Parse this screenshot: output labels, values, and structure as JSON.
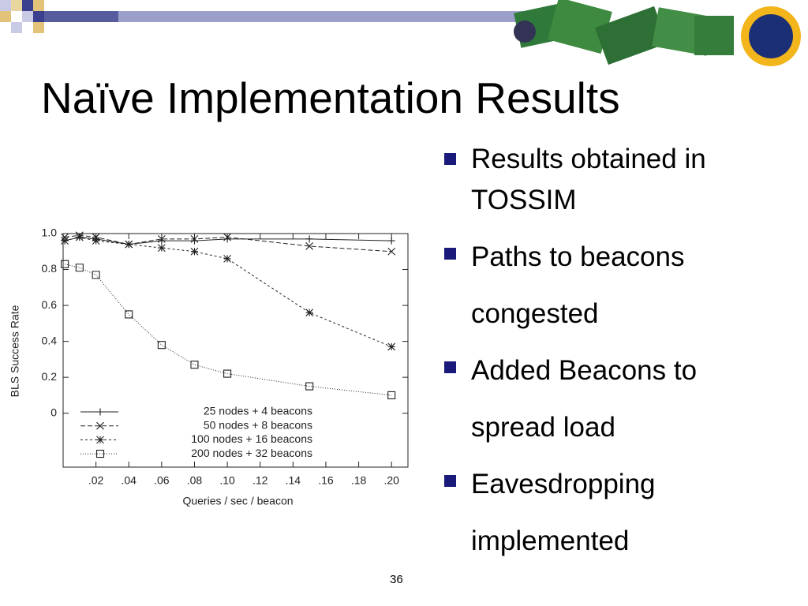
{
  "slide": {
    "title": "Naïve Implementation Results",
    "bullets": [
      "Results obtained in TOSSIM",
      "Paths to beacons congested",
      "Added Beacons to spread load",
      "Eavesdropping implemented"
    ],
    "page_number": "36"
  },
  "chart_data": {
    "type": "line",
    "x_label": "Queries / sec / beacon",
    "y_label": "BLS Success Rate",
    "x": [
      0.001,
      0.01,
      0.02,
      0.04,
      0.06,
      0.08,
      0.1,
      0.15,
      0.2
    ],
    "series": [
      {
        "name": "25 nodes + 4 beacons",
        "color": "#222222",
        "marker": "plus",
        "dash": "solid",
        "values": [
          0.96,
          0.98,
          0.97,
          0.94,
          0.96,
          0.96,
          0.97,
          0.97,
          0.96
        ]
      },
      {
        "name": "50 nodes + 8 beacons",
        "color": "#222222",
        "marker": "cross",
        "dash": "dashed",
        "values": [
          0.98,
          0.99,
          0.98,
          0.94,
          0.97,
          0.97,
          0.98,
          0.93,
          0.9
        ]
      },
      {
        "name": "100 nodes + 16 beacons",
        "color": "#222222",
        "marker": "star",
        "dash": "short-dashed",
        "values": [
          0.96,
          0.98,
          0.96,
          0.94,
          0.92,
          0.9,
          0.86,
          0.56,
          0.37
        ]
      },
      {
        "name": "200 nodes + 32 beacons",
        "color": "#222222",
        "marker": "square",
        "dash": "dotted",
        "values": [
          0.83,
          0.81,
          0.77,
          0.55,
          0.38,
          0.27,
          0.22,
          0.15,
          0.1
        ]
      }
    ],
    "xlim": [
      0,
      0.21
    ],
    "xticks": [
      {
        "value": 0.02,
        "label": ".02"
      },
      {
        "value": 0.04,
        "label": ".04"
      },
      {
        "value": 0.06,
        "label": ".06"
      },
      {
        "value": 0.08,
        "label": ".08"
      },
      {
        "value": 0.1,
        "label": ".10"
      },
      {
        "value": 0.12,
        "label": ".12"
      },
      {
        "value": 0.14,
        "label": ".14"
      },
      {
        "value": 0.16,
        "label": ".16"
      },
      {
        "value": 0.18,
        "label": ".18"
      },
      {
        "value": 0.2,
        "label": ".20"
      }
    ],
    "ylim": [
      -0.3,
      1.0
    ],
    "yticks": [
      {
        "value": 1,
        "label": "1.0"
      },
      0.8,
      0.6,
      0.4,
      0.2,
      0
    ],
    "legend": "lower-left"
  }
}
